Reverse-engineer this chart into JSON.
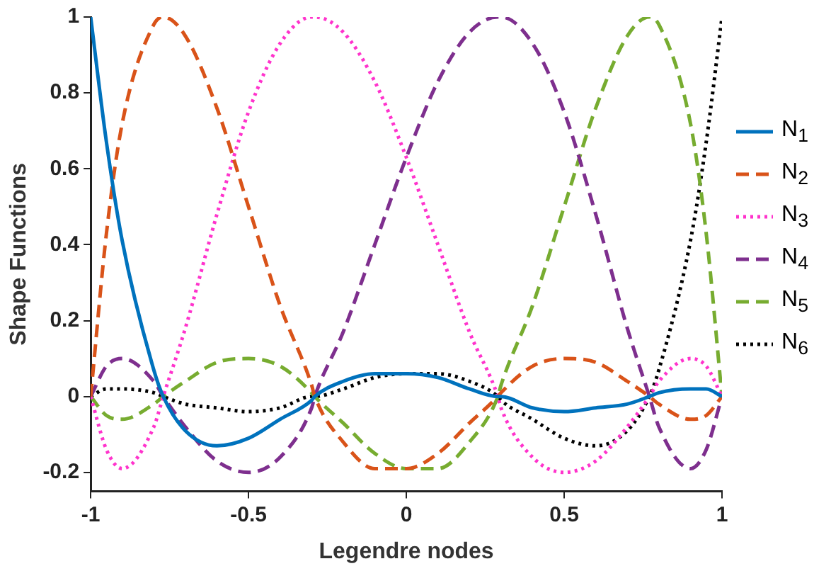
{
  "chart_data": {
    "type": "line",
    "xlabel": "Legendre nodes",
    "ylabel": "Shape Functions",
    "x": [
      -1,
      -0.95,
      -0.9,
      -0.8,
      -0.77,
      -0.7,
      -0.6,
      -0.5,
      -0.4,
      -0.3,
      -0.29,
      -0.2,
      -0.1,
      0,
      0.1,
      0.2,
      0.29,
      0.3,
      0.4,
      0.5,
      0.6,
      0.7,
      0.77,
      0.8,
      0.9,
      0.95,
      1
    ],
    "series": [
      {
        "name": "N$_{1}$",
        "color": "#0072bd",
        "line_style": "solid",
        "values": [
          1,
          0.67,
          0.41,
          0.07,
          0,
          -0.09,
          -0.13,
          -0.11,
          -0.06,
          -0.01,
          0,
          0.04,
          0.06,
          0.06,
          0.05,
          0.02,
          0,
          0,
          -0.03,
          -0.04,
          -0.03,
          -0.02,
          0,
          0.01,
          0.02,
          0.02,
          0
        ]
      },
      {
        "name": "N$_{2}$",
        "color": "#d95319",
        "line_style": "dashed",
        "values": [
          0,
          0.43,
          0.72,
          0.98,
          1,
          0.95,
          0.76,
          0.5,
          0.24,
          0.03,
          0,
          -0.12,
          -0.19,
          -0.19,
          -0.15,
          -0.07,
          0,
          0.01,
          0.08,
          0.1,
          0.09,
          0.04,
          0,
          -0.02,
          -0.06,
          -0.05,
          0
        ]
      },
      {
        "name": "N$_{3}$",
        "color": "#ff33cc",
        "line_style": "dotted",
        "values": [
          0,
          -0.14,
          -0.19,
          -0.08,
          0,
          0.18,
          0.48,
          0.75,
          0.93,
          1,
          1,
          0.96,
          0.83,
          0.63,
          0.4,
          0.17,
          0,
          -0.03,
          -0.16,
          -0.2,
          -0.17,
          -0.08,
          0,
          0.04,
          0.1,
          0.08,
          0
        ]
      },
      {
        "name": "N$_{4}$",
        "color": "#7e2f8e",
        "line_style": "dashed",
        "values": [
          0,
          0.08,
          0.1,
          0.04,
          0,
          -0.08,
          -0.17,
          -0.2,
          -0.16,
          -0.03,
          0,
          0.17,
          0.4,
          0.63,
          0.83,
          0.96,
          1,
          1,
          0.93,
          0.75,
          0.48,
          0.18,
          0,
          -0.08,
          -0.19,
          -0.14,
          0
        ]
      },
      {
        "name": "N$_{5}$",
        "color": "#77ac30",
        "line_style": "dashed",
        "values": [
          0,
          -0.05,
          -0.06,
          -0.02,
          0,
          0.04,
          0.09,
          0.1,
          0.08,
          0.01,
          0,
          -0.07,
          -0.15,
          -0.19,
          -0.19,
          -0.12,
          0,
          0.03,
          0.24,
          0.5,
          0.76,
          0.95,
          1,
          0.98,
          0.72,
          0.43,
          0
        ]
      },
      {
        "name": "N$_{6}$",
        "color": "#000000",
        "line_style": "dotted",
        "values": [
          0,
          0.02,
          0.02,
          0.01,
          0,
          -0.02,
          -0.03,
          -0.04,
          -0.03,
          0,
          0,
          0.02,
          0.05,
          0.06,
          0.06,
          0.04,
          0,
          -0.01,
          -0.06,
          -0.11,
          -0.13,
          -0.09,
          0,
          0.07,
          0.41,
          0.67,
          1
        ]
      }
    ],
    "xlim": [
      -1,
      1
    ],
    "xticks": [
      -1,
      -0.5,
      0,
      0.5,
      1
    ],
    "ylim": [
      -0.25,
      1
    ],
    "yticks": [
      -0.2,
      0,
      0.2,
      0.4,
      0.6,
      0.8,
      1
    ],
    "grid": false,
    "legend": "right",
    "marker": "none"
  }
}
